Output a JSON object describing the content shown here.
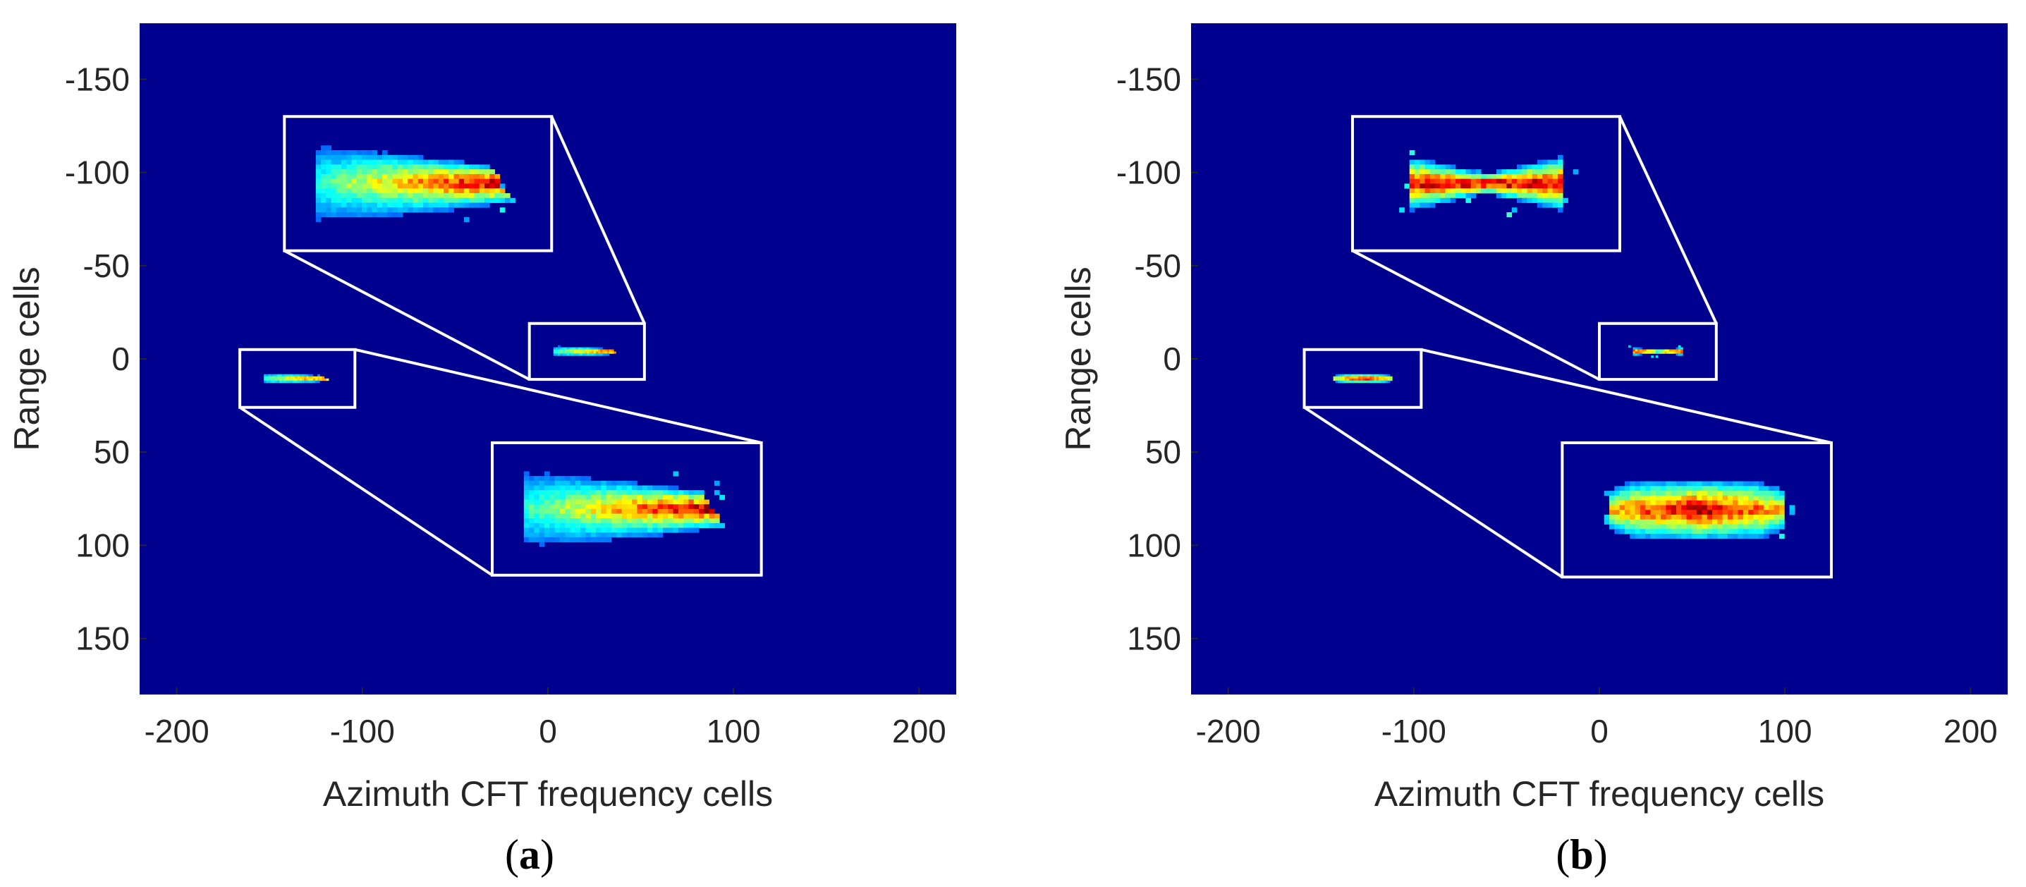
{
  "figure": {
    "background": "#ffffff",
    "plot_background": "#00008F",
    "inset_color": "#ffffff"
  },
  "chart_data": [
    {
      "type": "heatmap",
      "caption": "(a)",
      "caption_letter": "a",
      "xlabel": "Azimuth CFT frequency cells",
      "ylabel": "Range cells",
      "xlim": [
        -220,
        220
      ],
      "ylim": [
        -180,
        180
      ],
      "y_reversed": true,
      "xticks": [
        -200,
        -100,
        0,
        100,
        200
      ],
      "yticks": [
        -150,
        -100,
        -50,
        0,
        50,
        100,
        150
      ],
      "xtick_labels": [
        "-200",
        "-100",
        "0",
        "100",
        "200"
      ],
      "ytick_labels": [
        "-150",
        "-100",
        "-50",
        "0",
        "50",
        "100",
        "150"
      ],
      "colormap": "jet",
      "grid": false,
      "targets": [
        {
          "center": [
            -135,
            13
          ],
          "source_box": {
            "x": [
              -166,
              -104
            ],
            "y": [
              -5,
              26
            ]
          },
          "inset_box": {
            "x": [
              -30,
              115
            ],
            "y": [
              45,
              116
            ]
          },
          "shape": "wedge"
        },
        {
          "center": [
            20,
            0
          ],
          "source_box": {
            "x": [
              -10,
              52
            ],
            "y": [
              -19,
              11
            ]
          },
          "inset_box": {
            "x": [
              -142,
              2
            ],
            "y": [
              -130,
              -58
            ]
          },
          "shape": "wedge"
        }
      ]
    },
    {
      "type": "heatmap",
      "caption": "(b)",
      "caption_letter": "b",
      "xlabel": "Azimuth CFT frequency cells",
      "ylabel": "Range cells",
      "xlim": [
        -220,
        220
      ],
      "ylim": [
        -180,
        180
      ],
      "y_reversed": true,
      "xticks": [
        -200,
        -100,
        0,
        100,
        200
      ],
      "yticks": [
        -150,
        -100,
        -50,
        0,
        50,
        100,
        150
      ],
      "xtick_labels": [
        "-200",
        "-100",
        "0",
        "100",
        "200"
      ],
      "ytick_labels": [
        "-150",
        "-100",
        "-50",
        "0",
        "50",
        "100",
        "150"
      ],
      "colormap": "jet",
      "grid": false,
      "targets": [
        {
          "center": [
            -128,
            13
          ],
          "source_box": {
            "x": [
              -159,
              -96
            ],
            "y": [
              -5,
              26
            ]
          },
          "inset_box": {
            "x": [
              -20,
              125
            ],
            "y": [
              45,
              117
            ]
          },
          "shape": "bar"
        },
        {
          "center": [
            36,
            0
          ],
          "source_box": {
            "x": [
              0,
              63
            ],
            "y": [
              -19,
              11
            ]
          },
          "inset_box": {
            "x": [
              -133,
              11
            ],
            "y": [
              -130,
              -58
            ]
          },
          "shape": "hourglass"
        }
      ]
    }
  ]
}
